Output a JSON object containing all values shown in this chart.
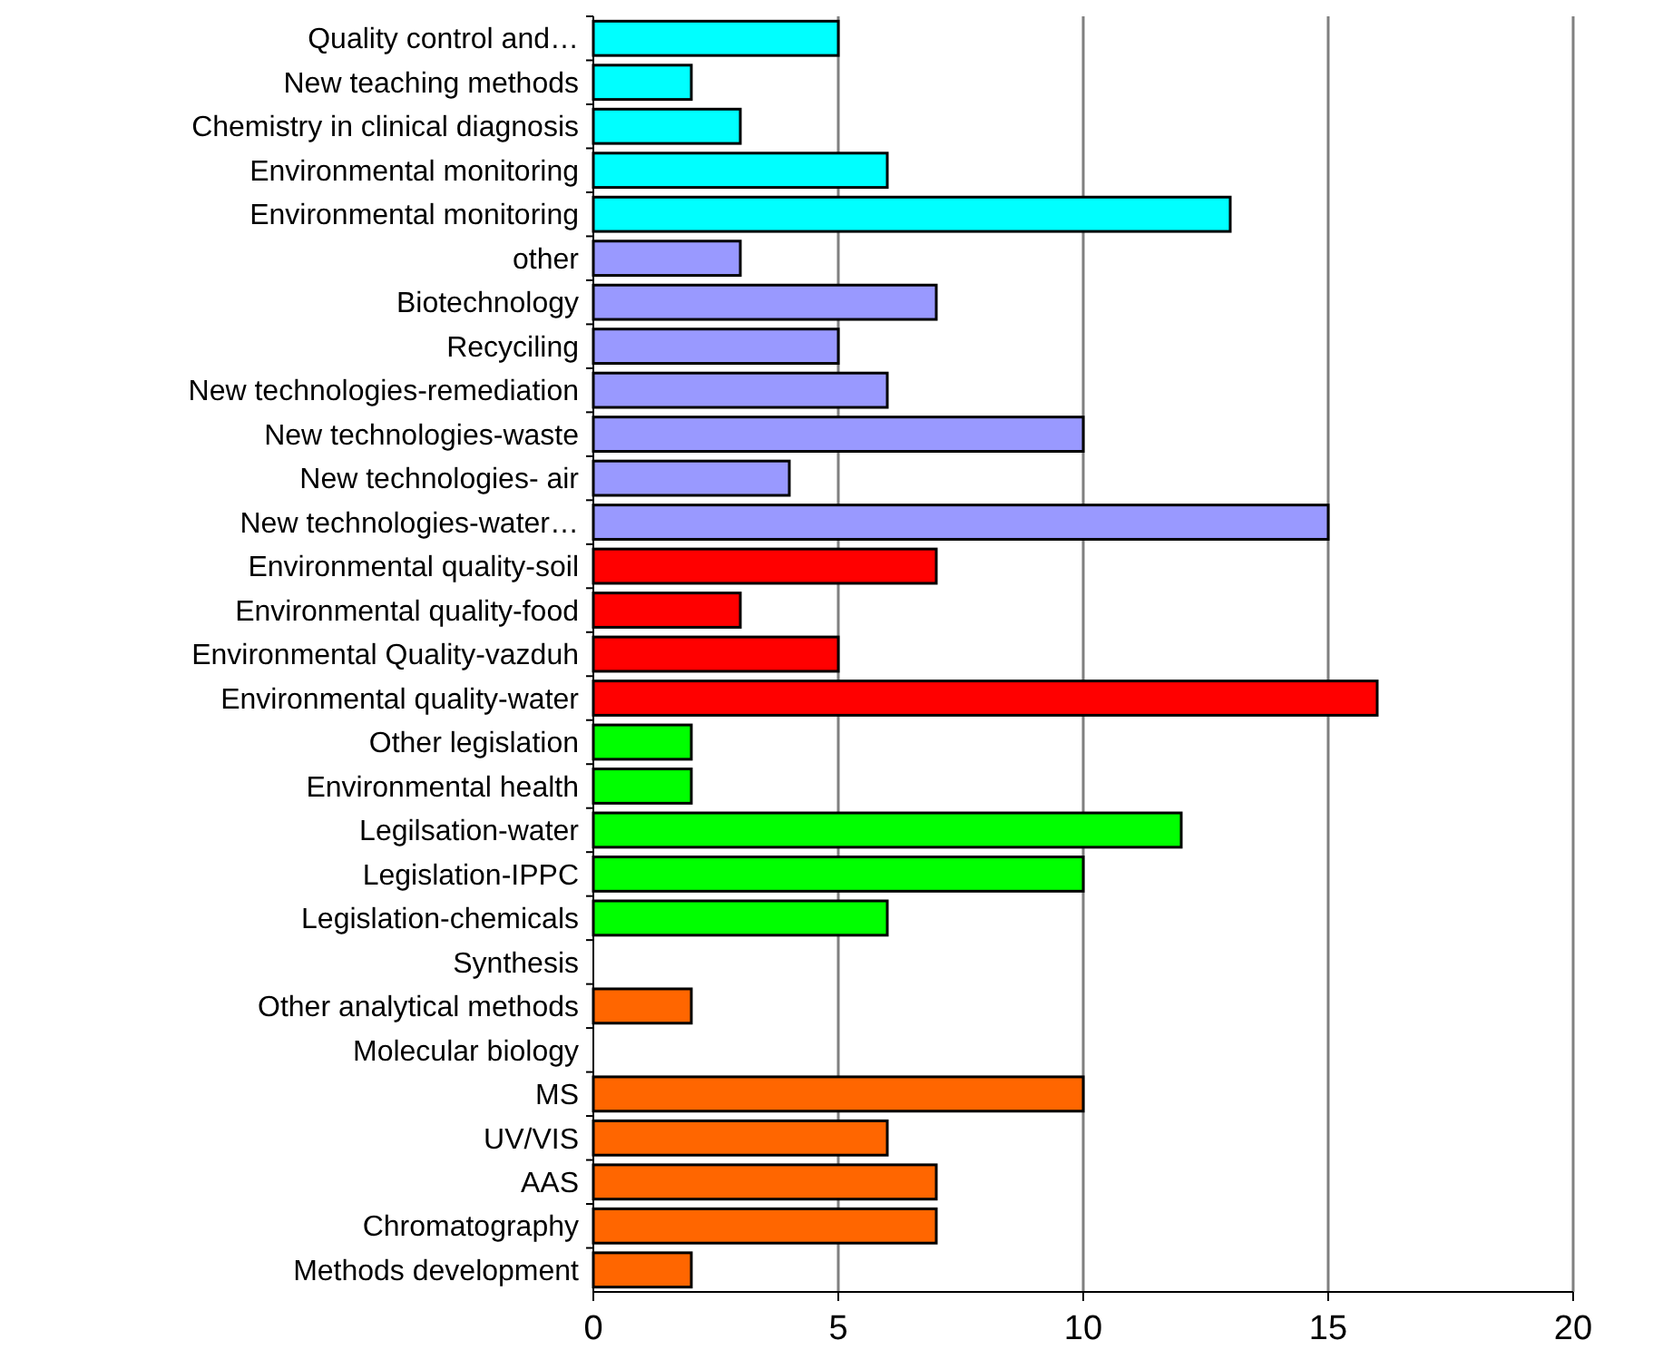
{
  "chart_data": {
    "type": "bar",
    "orientation": "horizontal",
    "categories": [
      "Quality control and…",
      "New teaching methods",
      "Chemistry in clinical diagnosis",
      "Environmental monitoring",
      "Environmental monitoring",
      "other",
      "Biotechnology",
      "Recyciling",
      "New technologies-remediation",
      "New technologies-waste",
      "New technologies- air",
      "New technologies-water…",
      "Environmental quality-soil",
      "Environmental quality-food",
      "Environmental Quality-vazduh",
      "Environmental quality-water",
      "Other legislation",
      "Environmental health",
      "Legilsation-water",
      "Legislation-IPPC",
      "Legislation-chemicals",
      "Synthesis",
      "Other analytical methods",
      "Molecular biology",
      "MS",
      "UV/VIS",
      "AAS",
      "Chromatography",
      "Methods development"
    ],
    "values": [
      5,
      2,
      3,
      6,
      13,
      3,
      7,
      5,
      6,
      10,
      4,
      15,
      7,
      3,
      5,
      16,
      2,
      2,
      12,
      10,
      6,
      0,
      2,
      0,
      10,
      6,
      7,
      7,
      2
    ],
    "colors": [
      "#00ffff",
      "#00ffff",
      "#00ffff",
      "#00ffff",
      "#00ffff",
      "#9999ff",
      "#9999ff",
      "#9999ff",
      "#9999ff",
      "#9999ff",
      "#9999ff",
      "#9999ff",
      "#ff0000",
      "#ff0000",
      "#ff0000",
      "#ff0000",
      "#00ff00",
      "#00ff00",
      "#00ff00",
      "#00ff00",
      "#00ff00",
      "#ff6600",
      "#ff6600",
      "#ff6600",
      "#ff6600",
      "#ff6600",
      "#ff6600",
      "#ff6600",
      "#ff6600"
    ],
    "xlim": [
      0,
      20
    ],
    "xticks": [
      0,
      5,
      10,
      15,
      20
    ],
    "grid": "x"
  }
}
